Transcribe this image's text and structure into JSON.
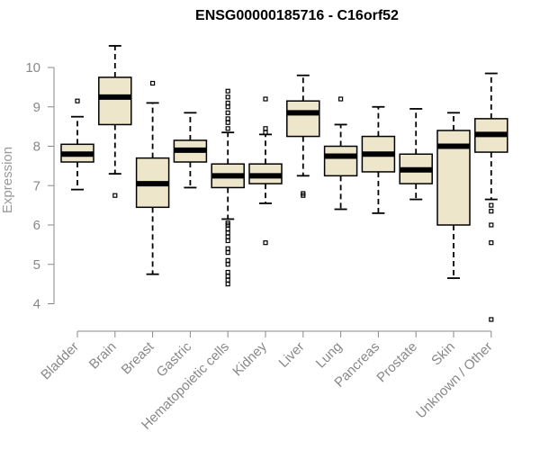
{
  "chart_data": {
    "type": "boxplot",
    "title": "ENSG00000185716 - C16orf52",
    "xlabel": "",
    "ylabel": "Expression",
    "ylim": [
      3.6,
      10.8
    ],
    "yticks": [
      4,
      5,
      6,
      7,
      8,
      9,
      10
    ],
    "categories": [
      "Bladder",
      "Brain",
      "Breast",
      "Gastric",
      "Hematopoietic cells",
      "Kidney",
      "Liver",
      "Lung",
      "Pancreas",
      "Prostate",
      "Skin",
      "Unknown / Other"
    ],
    "series": [
      {
        "name": "Bladder",
        "q1": 7.6,
        "median": 7.8,
        "q3": 8.05,
        "whisker_low": 6.9,
        "whisker_high": 8.75,
        "outliers": [
          9.15
        ]
      },
      {
        "name": "Brain",
        "q1": 8.55,
        "median": 9.25,
        "q3": 9.75,
        "whisker_low": 7.3,
        "whisker_high": 10.55,
        "outliers": [
          6.75
        ]
      },
      {
        "name": "Breast",
        "q1": 6.45,
        "median": 7.05,
        "q3": 7.7,
        "whisker_low": 4.75,
        "whisker_high": 9.1,
        "outliers": [
          9.6
        ]
      },
      {
        "name": "Gastric",
        "q1": 7.6,
        "median": 7.9,
        "q3": 8.15,
        "whisker_low": 6.95,
        "whisker_high": 8.85,
        "outliers": []
      },
      {
        "name": "Hematopoietic cells",
        "q1": 6.95,
        "median": 7.25,
        "q3": 7.55,
        "whisker_low": 6.15,
        "whisker_high": 8.35,
        "outliers": [
          4.5,
          4.6,
          4.7,
          4.8,
          5.0,
          5.1,
          5.3,
          5.4,
          5.6,
          5.7,
          5.8,
          5.9,
          6.0,
          6.05,
          8.45,
          8.6,
          8.7,
          8.85,
          9.0,
          9.1,
          9.25,
          9.4
        ]
      },
      {
        "name": "Kidney",
        "q1": 7.05,
        "median": 7.25,
        "q3": 7.55,
        "whisker_low": 6.55,
        "whisker_high": 8.3,
        "outliers": [
          5.55,
          8.35,
          8.45,
          9.2
        ]
      },
      {
        "name": "Liver",
        "q1": 8.25,
        "median": 8.85,
        "q3": 9.15,
        "whisker_low": 7.25,
        "whisker_high": 9.8,
        "outliers": [
          6.75,
          6.8
        ]
      },
      {
        "name": "Lung",
        "q1": 7.25,
        "median": 7.75,
        "q3": 8.0,
        "whisker_low": 6.4,
        "whisker_high": 8.55,
        "outliers": [
          9.2
        ]
      },
      {
        "name": "Pancreas",
        "q1": 7.35,
        "median": 7.8,
        "q3": 8.25,
        "whisker_low": 6.3,
        "whisker_high": 9.0,
        "outliers": []
      },
      {
        "name": "Prostate",
        "q1": 7.05,
        "median": 7.4,
        "q3": 7.8,
        "whisker_low": 6.65,
        "whisker_high": 8.95,
        "outliers": []
      },
      {
        "name": "Skin",
        "q1": 6.0,
        "median": 8.0,
        "q3": 8.4,
        "whisker_low": 4.65,
        "whisker_high": 8.85,
        "outliers": []
      },
      {
        "name": "Unknown / Other",
        "q1": 7.85,
        "median": 8.3,
        "q3": 8.7,
        "whisker_low": 6.65,
        "whisker_high": 9.85,
        "outliers": [
          3.6,
          5.55,
          6.0,
          6.35,
          6.5
        ]
      }
    ]
  }
}
